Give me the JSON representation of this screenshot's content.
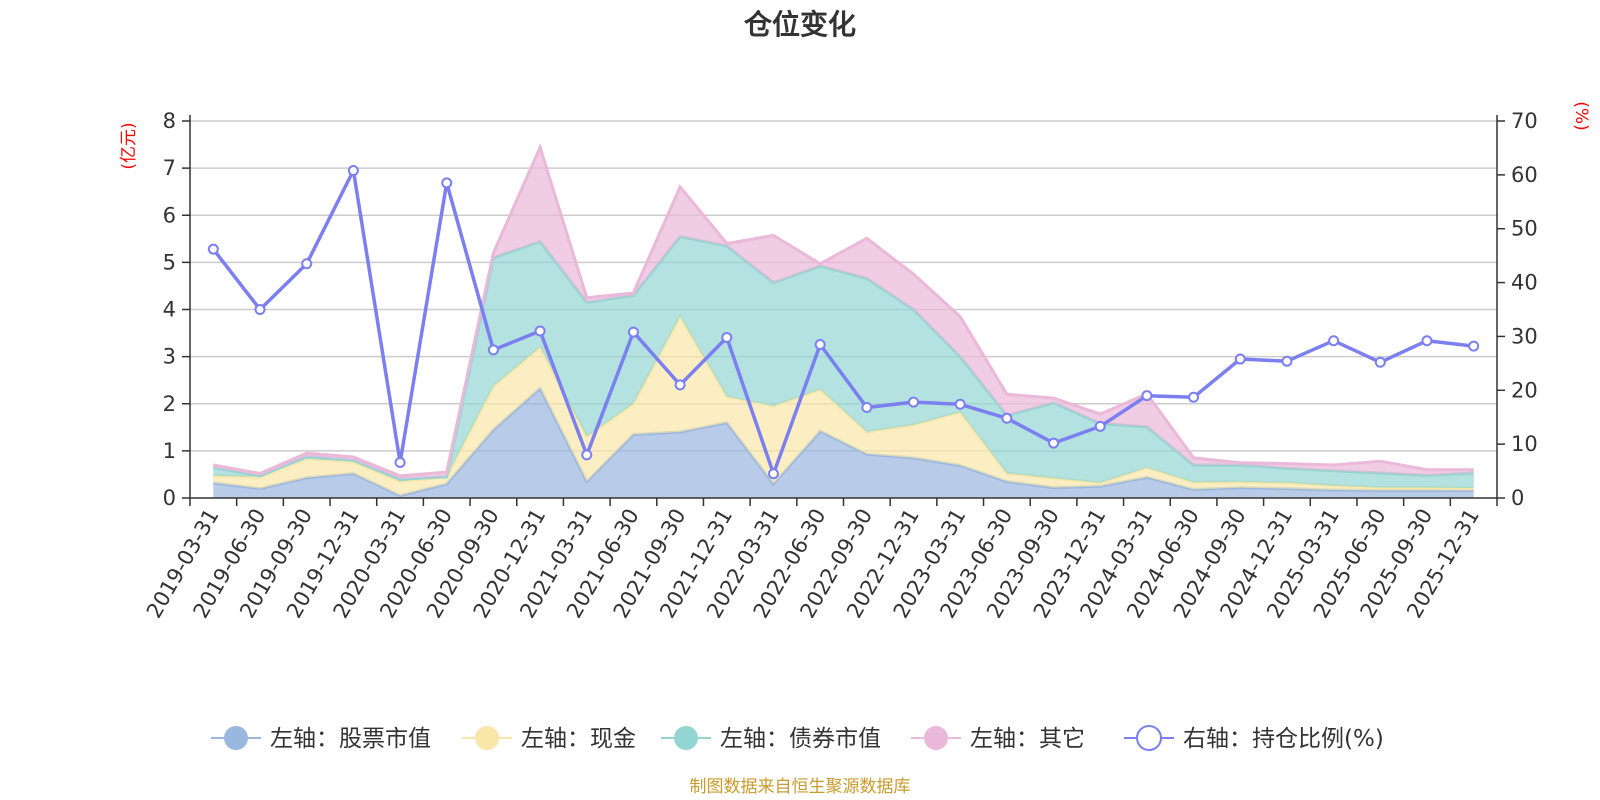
{
  "chart_data": {
    "type": "area",
    "title": "仓位变化",
    "categories": [
      "2019-03-31",
      "2019-06-30",
      "2019-09-30",
      "2019-12-31",
      "2020-03-31",
      "2020-06-30",
      "2020-09-30",
      "2020-12-31",
      "2021-03-31",
      "2021-06-30",
      "2021-09-30",
      "2021-12-31",
      "2022-03-31",
      "2022-06-30",
      "2022-09-30",
      "2022-12-31",
      "2023-03-31",
      "2023-06-30",
      "2023-09-30",
      "2023-12-31",
      "2024-03-31",
      "2024-06-30",
      "2024-09-30",
      "2024-12-31",
      "2025-03-31",
      "2025-06-30",
      "2025-09-30",
      "2025-12-31"
    ],
    "left_axis": {
      "unit": "(亿元)",
      "ylim": [
        0,
        8
      ],
      "ticks": [
        0,
        1,
        2,
        3,
        4,
        5,
        6,
        7,
        8
      ]
    },
    "right_axis": {
      "unit": "(%)",
      "ylim": [
        0,
        70
      ],
      "ticks": [
        0,
        10,
        20,
        30,
        40,
        50,
        60,
        70
      ]
    },
    "series": [
      {
        "name": "左轴：股票市值",
        "axis": "left",
        "stack": true,
        "color": "#9ab7e0",
        "values": [
          0.32,
          0.2,
          0.43,
          0.52,
          0.05,
          0.3,
          1.45,
          2.33,
          0.35,
          1.35,
          1.4,
          1.6,
          0.3,
          1.42,
          0.93,
          0.85,
          0.69,
          0.35,
          0.22,
          0.25,
          0.44,
          0.18,
          0.22,
          0.2,
          0.17,
          0.16,
          0.16,
          0.16
        ]
      },
      {
        "name": "左轴：现金",
        "axis": "left",
        "stack": true,
        "color": "#f8e7a8",
        "values": [
          0.15,
          0.25,
          0.4,
          0.25,
          0.3,
          0.15,
          0.92,
          0.87,
          0.95,
          0.65,
          2.45,
          0.55,
          1.65,
          0.88,
          0.47,
          0.7,
          1.13,
          0.17,
          0.2,
          0.07,
          0.2,
          0.15,
          0.12,
          0.12,
          0.09,
          0.06,
          0.06,
          0.05
        ]
      },
      {
        "name": "左轴：债券市值",
        "axis": "left",
        "stack": true,
        "color": "#93d5d3",
        "values": [
          0.18,
          0.02,
          0.05,
          0.03,
          0.05,
          0.0,
          2.73,
          2.24,
          2.85,
          2.3,
          1.7,
          3.2,
          2.62,
          2.62,
          3.26,
          2.45,
          1.18,
          1.23,
          1.6,
          1.26,
          0.87,
          0.37,
          0.36,
          0.31,
          0.32,
          0.31,
          0.26,
          0.32
        ]
      },
      {
        "name": "左轴：其它",
        "axis": "left",
        "stack": true,
        "color": "#eab8d9",
        "values": [
          0.05,
          0.05,
          0.07,
          0.07,
          0.07,
          0.1,
          0.1,
          2.0,
          0.1,
          0.05,
          1.05,
          0.05,
          1.0,
          0.05,
          0.85,
          0.75,
          0.85,
          0.45,
          0.1,
          0.2,
          0.7,
          0.15,
          0.05,
          0.1,
          0.12,
          0.25,
          0.12,
          0.07
        ]
      },
      {
        "name": "右轴：持仓比例(%)",
        "axis": "right",
        "stack": false,
        "color": "#7b7ff0",
        "values": [
          46.2,
          35,
          43.5,
          60.8,
          6.6,
          58.5,
          27.5,
          31,
          8,
          30.8,
          21,
          29.8,
          4.5,
          28.5,
          16.8,
          17.8,
          17.4,
          14.8,
          10.2,
          13.3,
          19,
          18.7,
          25.8,
          25.4,
          29.2,
          25.2,
          29.2,
          28.2
        ]
      }
    ],
    "source": "制图数据来自恒生聚源数据库"
  }
}
